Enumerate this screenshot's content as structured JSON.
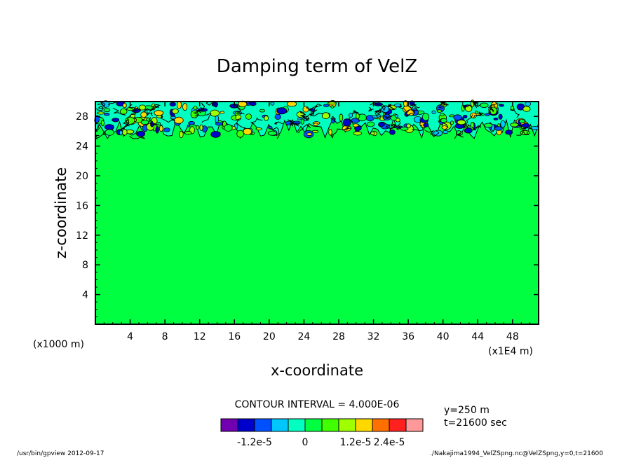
{
  "chart_data": {
    "type": "heatmap",
    "title": "Damping term of VelZ",
    "xlabel": "x-coordinate",
    "ylabel": "z-coordinate",
    "x_unit_label": "(x1000 m)",
    "x_scale_label": "(x1E4 m)",
    "xlim": [
      0,
      51
    ],
    "ylim": [
      0,
      30
    ],
    "x_ticks": [
      "4",
      "8",
      "12",
      "16",
      "20",
      "24",
      "28",
      "32",
      "36",
      "40",
      "44",
      "48"
    ],
    "y_ticks": [
      "4",
      "8",
      "12",
      "16",
      "20",
      "24",
      "28"
    ],
    "x_tick_values": [
      4,
      8,
      12,
      16,
      20,
      24,
      28,
      32,
      36,
      40,
      44,
      48
    ],
    "y_tick_values": [
      4,
      8,
      12,
      16,
      20,
      24,
      28
    ],
    "field": {
      "background_level": 0,
      "background_color": "#00ff40",
      "noisy_layer_z_range": [
        25,
        30
      ],
      "description_levels": "near-zero everywhere below z=25; alternating small positive/negative contours in the damping layer"
    },
    "contour_interval": "CONTOUR INTERVAL = 4.000E-06",
    "colorbar": {
      "colors": [
        "#7000b0",
        "#0000cc",
        "#0050ff",
        "#00c8ff",
        "#00ffc0",
        "#00ff40",
        "#40ff00",
        "#a0ff00",
        "#ffd800",
        "#ff7000",
        "#ff2020",
        "#ff9898"
      ],
      "labels": [
        "-1.2e-5",
        "0",
        "1.2e-5",
        "2.4e-5"
      ],
      "label_bin_edges": [
        2,
        5,
        8,
        10
      ]
    },
    "annotations": {
      "y_position": "y=250  m",
      "time": "t=21600 sec"
    }
  },
  "footer": {
    "left": "/usr/bin/gpview   2012-09-17",
    "right": "./Nakajima1994_VelZSpng.nc@VelZSpng,y=0,t=21600"
  }
}
